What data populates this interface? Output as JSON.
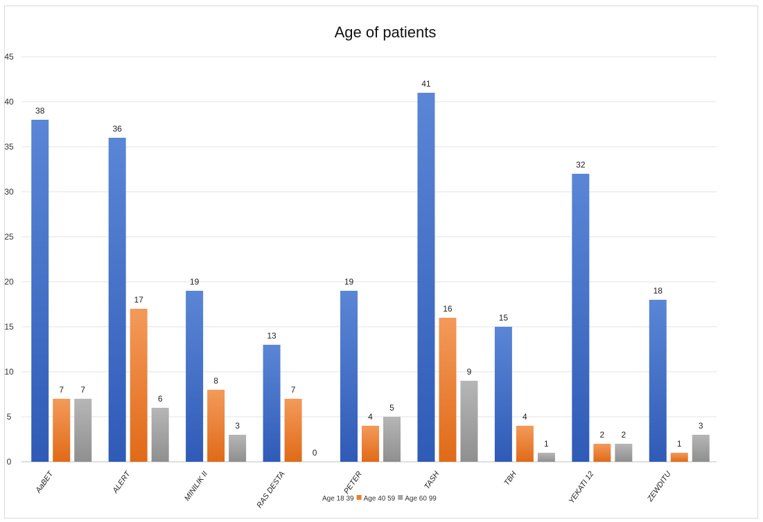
{
  "chart_data": {
    "type": "bar",
    "title": "Age of patients",
    "categories": [
      "AaBET",
      "ALERT",
      "MINILIK II",
      "RAS DESTA",
      "PETER",
      "TASH",
      "TBH",
      "YEKATI 12",
      "ZEWDITU"
    ],
    "series": [
      {
        "name": "Age 18 39",
        "color": "#4472c4",
        "values": [
          38,
          36,
          19,
          13,
          19,
          41,
          15,
          32,
          18
        ]
      },
      {
        "name": "Age 40 59",
        "color": "#ed7d31",
        "values": [
          7,
          17,
          8,
          7,
          4,
          16,
          4,
          2,
          1
        ]
      },
      {
        "name": "Age 60 99",
        "color": "#a5a5a5",
        "values": [
          7,
          6,
          3,
          0,
          5,
          9,
          1,
          2,
          3
        ]
      }
    ],
    "ylim": [
      0,
      45
    ],
    "yticks": [
      0,
      5,
      10,
      15,
      20,
      25,
      30,
      35,
      40,
      45
    ],
    "grid": true,
    "legend_position": "bottom"
  }
}
